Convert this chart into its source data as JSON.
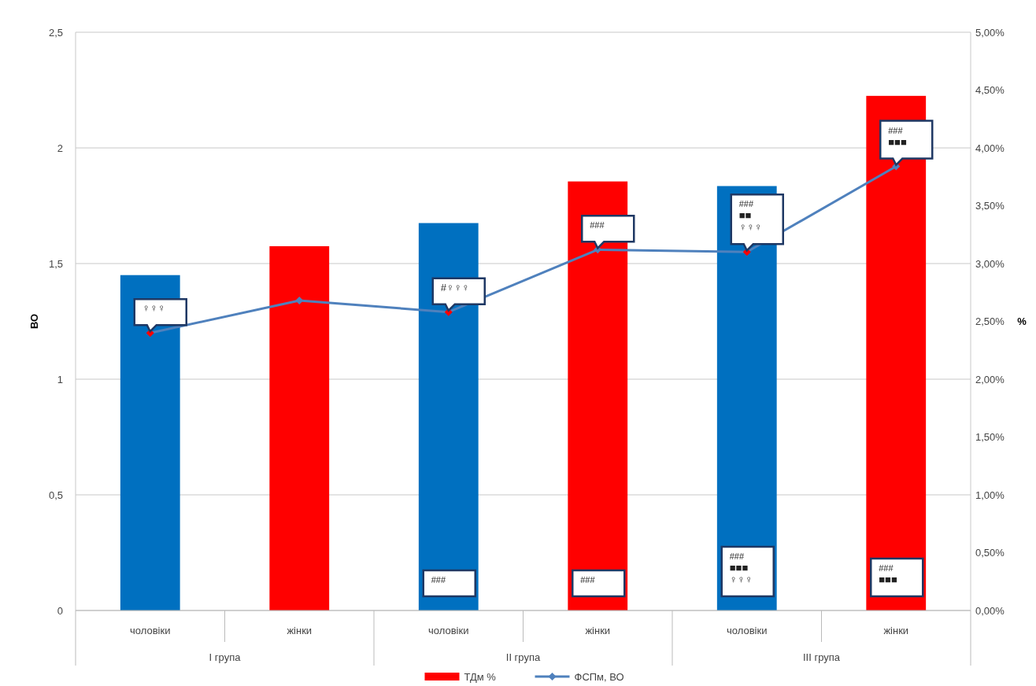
{
  "chart_data": {
    "type": "bar",
    "ylabel": "ВО",
    "y2label": "%",
    "categories": [
      "чоловіки",
      "жінки",
      "чоловіки",
      "жінки",
      "чоловіки",
      "жінки"
    ],
    "annotations": [
      "I група",
      "II група",
      "III група"
    ],
    "series": [
      {
        "name": "ТДм %",
        "axis": "y2",
        "color": "#ff0000",
        "colors": [
          "#0070c0",
          "#ff0000",
          "#0070c0",
          "#ff0000",
          "#0070c0",
          "#ff0000"
        ],
        "values": [
          2.9,
          3.15,
          3.35,
          3.71,
          3.67,
          4.45
        ],
        "value_labels": [
          null,
          null,
          "###",
          "###",
          "###\n■■■\n♀♀♀",
          "###\n■■■"
        ]
      },
      {
        "name": "ФСПм, ВО",
        "type": "line",
        "axis": "y",
        "color": "#4f81bd",
        "colors": [
          "#ff0000",
          "#4f81bd",
          "#ff0000",
          "#4f81bd",
          "#ff0000",
          "#4f81bd"
        ],
        "marker": "diamond",
        "values": [
          1.2,
          1.34,
          1.29,
          1.56,
          1.55,
          1.92
        ],
        "value_labels": [
          "♀♀♀",
          null,
          "#♀♀♀",
          "###",
          "###\n■■\n♀♀♀",
          "###\n■■■"
        ]
      }
    ],
    "ylim": [
      0,
      2.5
    ],
    "yticks": [
      0,
      {
        "value": 0.5,
        "label": "0,5"
      },
      1,
      {
        "value": 1.5,
        "label": "1,5"
      },
      2,
      {
        "value": 2.5,
        "label": "2,5"
      }
    ],
    "y2lim": [
      0,
      5
    ],
    "y2ticks": [
      {
        "value": 0,
        "label": "0,00%"
      },
      {
        "value": 0.5,
        "label": "0,50%"
      },
      {
        "value": 1,
        "label": "1,00%"
      },
      {
        "value": 1.5,
        "label": "1,50%"
      },
      {
        "value": 2,
        "label": "2,00%"
      },
      {
        "value": 2.5,
        "label": "2,50%"
      },
      {
        "value": 3,
        "label": "3,00%"
      },
      {
        "value": 3.5,
        "label": "3,50%"
      },
      {
        "value": 4,
        "label": "4,00%"
      },
      {
        "value": 4.5,
        "label": "4,50%"
      },
      {
        "value": 5,
        "label": "5,00%"
      }
    ],
    "grid": "y",
    "legend": "bottom"
  }
}
